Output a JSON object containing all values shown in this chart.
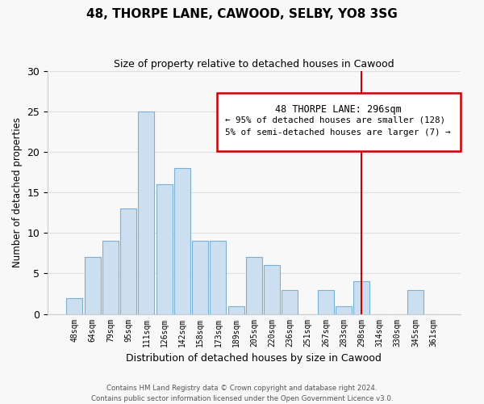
{
  "title": "48, THORPE LANE, CAWOOD, SELBY, YO8 3SG",
  "subtitle": "Size of property relative to detached houses in Cawood",
  "xlabel": "Distribution of detached houses by size in Cawood",
  "ylabel": "Number of detached properties",
  "bar_color": "#ccdff0",
  "bar_edge_color": "#7ab0d4",
  "categories": [
    "48sqm",
    "64sqm",
    "79sqm",
    "95sqm",
    "111sqm",
    "126sqm",
    "142sqm",
    "158sqm",
    "173sqm",
    "189sqm",
    "205sqm",
    "220sqm",
    "236sqm",
    "251sqm",
    "267sqm",
    "283sqm",
    "298sqm",
    "314sqm",
    "330sqm",
    "345sqm",
    "361sqm"
  ],
  "values": [
    2,
    7,
    9,
    13,
    25,
    16,
    18,
    9,
    9,
    1,
    7,
    6,
    3,
    0,
    3,
    1,
    4,
    0,
    0,
    3,
    0
  ],
  "ylim": [
    0,
    30
  ],
  "yticks": [
    0,
    5,
    10,
    15,
    20,
    25,
    30
  ],
  "vline_x_idx": 16,
  "vline_color": "#cc0000",
  "legend_title": "48 THORPE LANE: 296sqm",
  "legend_line1": "← 95% of detached houses are smaller (128)",
  "legend_line2": "5% of semi-detached houses are larger (7) →",
  "footer_line1": "Contains HM Land Registry data © Crown copyright and database right 2024.",
  "footer_line2": "Contains public sector information licensed under the Open Government Licence v3.0.",
  "background_color": "#f8f8f8",
  "grid_color": "#e0e0e0"
}
